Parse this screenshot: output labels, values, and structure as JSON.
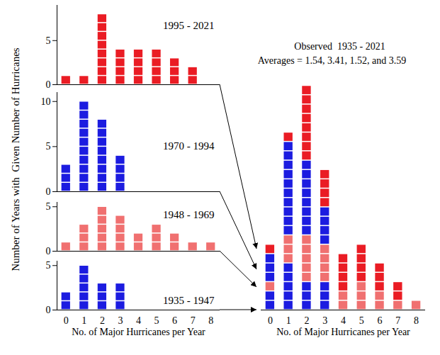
{
  "chart_data": [
    {
      "type": "bar",
      "title": "1995 - 2021",
      "y_label": "Number of Years with  Given Number of Hurricanes",
      "x": [
        0,
        1,
        2,
        3,
        4,
        5,
        6,
        7,
        8
      ],
      "values": [
        1,
        1,
        8,
        4,
        4,
        4,
        3,
        2,
        0
      ],
      "color": "#ea1c24",
      "xlim": [
        -0.5,
        8.5
      ],
      "ylim": [
        0,
        9
      ],
      "yticks": [
        0,
        5
      ],
      "tick_labels": "y"
    },
    {
      "type": "bar",
      "title": "1970 - 1994",
      "x": [
        0,
        1,
        2,
        3
      ],
      "values": [
        3,
        10,
        8,
        4
      ],
      "color": "#1c1ce0",
      "xlim": [
        -0.5,
        8.5
      ],
      "ylim": [
        0,
        11
      ],
      "yticks": [
        0,
        5,
        10
      ],
      "tick_labels": "y"
    },
    {
      "type": "bar",
      "title": "1948 - 1969",
      "x": [
        0,
        1,
        2,
        3,
        4,
        5,
        6,
        7,
        8
      ],
      "values": [
        1,
        3,
        5,
        4,
        2,
        3,
        2,
        1,
        1
      ],
      "color": "#f07070",
      "xlim": [
        -0.5,
        8.5
      ],
      "ylim": [
        0,
        5.5
      ],
      "yticks": [
        0,
        5
      ],
      "tick_labels": "y"
    },
    {
      "type": "bar",
      "title": "1935 - 1947",
      "x_label": "No. of Major Hurricanes per Year",
      "x": [
        0,
        1,
        2,
        3
      ],
      "values": [
        2,
        5,
        3,
        3
      ],
      "color": "#1c1ce0",
      "xlim": [
        -0.5,
        8.5
      ],
      "xticks": [
        0,
        1,
        2,
        3,
        4,
        5,
        6,
        7,
        8
      ],
      "ylim": [
        0,
        5.5
      ],
      "yticks": [
        0,
        5
      ],
      "tick_labels": true
    },
    {
      "type": "bar",
      "stacked": true,
      "title": "Observed  1935 - 2021",
      "subtitle": "Averages = 1.54, 3.41, 1.52, and 3.59",
      "x_label": "No. of Major Hurricanes per Year",
      "x": [
        0,
        1,
        2,
        3,
        4,
        5,
        6,
        7,
        8
      ],
      "series": [
        {
          "color": "#1c1ce0",
          "values": [
            2,
            5,
            3,
            3,
            0,
            0,
            0,
            0,
            0
          ]
        },
        {
          "color": "#f07070",
          "values": [
            1,
            3,
            5,
            4,
            2,
            3,
            2,
            1,
            1
          ]
        },
        {
          "color": "#1c1ce0",
          "values": [
            3,
            10,
            8,
            4,
            0,
            0,
            0,
            0,
            0
          ]
        },
        {
          "color": "#ea1c24",
          "values": [
            1,
            1,
            8,
            4,
            4,
            4,
            3,
            2,
            0
          ]
        }
      ],
      "xlim": [
        -0.5,
        8.5
      ],
      "xticks": [
        0,
        1,
        2,
        3,
        4,
        5,
        6,
        7,
        8
      ],
      "ylim": [
        0,
        32
      ],
      "yticks": [],
      "tick_labels": "x"
    }
  ]
}
